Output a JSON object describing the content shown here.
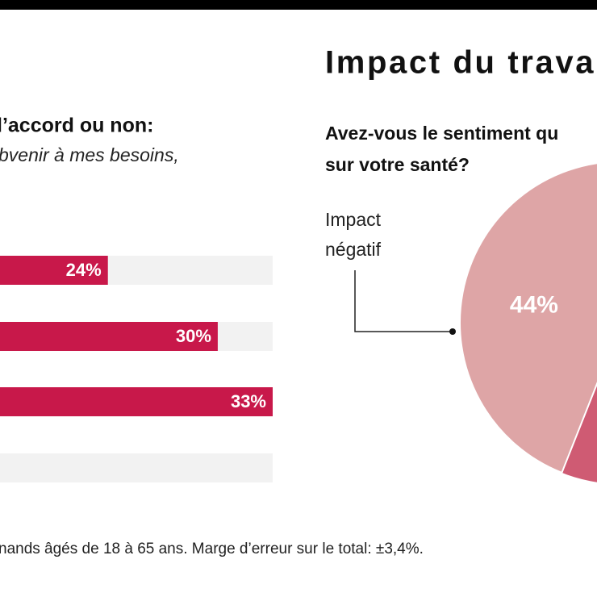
{
  "chart_data": [
    {
      "type": "barh",
      "title": "l’accord ou non:",
      "subtitle": "bvenir à mes besoins,",
      "categories": [
        null,
        null,
        null,
        null
      ],
      "values": [
        24,
        30,
        33,
        null
      ],
      "value_labels": [
        "24%",
        "30%",
        "33%",
        null
      ],
      "color": "#c8184a",
      "xlim": [
        0,
        33
      ]
    },
    {
      "type": "pie",
      "title": "Impact du travail",
      "subtitle": [
        "Avez-vous le sentiment qu",
        "sur votre santé?"
      ],
      "categories": [
        [
          "Impact",
          "négatif"
        ]
      ],
      "values": [
        44
      ],
      "value_labels": [
        "44%"
      ],
      "colors": [
        "#dea5a6"
      ]
    }
  ],
  "footnote": "nands âgés de 18 à 65 ans. Marge d’erreur sur le total: ±3,4%."
}
